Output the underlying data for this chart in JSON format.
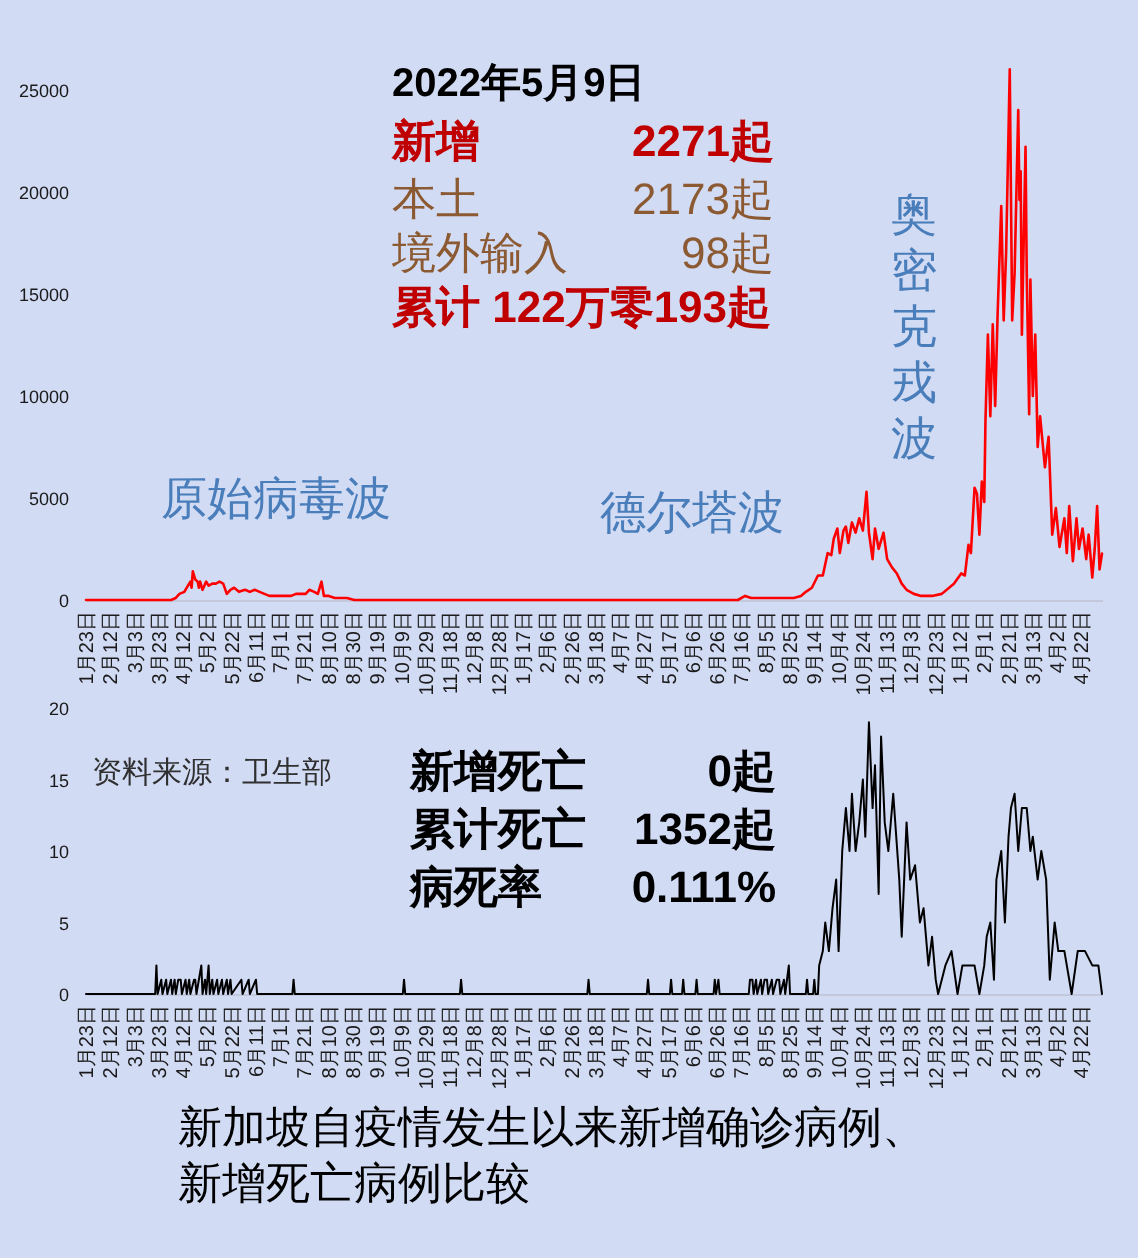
{
  "chart_data": [
    {
      "type": "line",
      "grid": false,
      "line_style": "solid",
      "xlim": [
        "2020-01-23",
        "2022-05-09"
      ],
      "xticks": [
        {
          "value": "2020-01-23",
          "label": "1月23日"
        },
        {
          "value": "2020-02-12",
          "label": "2月12日"
        },
        {
          "value": "2020-03-03",
          "label": "3月3日"
        },
        {
          "value": "2020-03-23",
          "label": "3月23日"
        },
        {
          "value": "2020-04-12",
          "label": "4月12日"
        },
        {
          "value": "2020-05-02",
          "label": "5月2日"
        },
        {
          "value": "2020-05-22",
          "label": "5月22日"
        },
        {
          "value": "2020-06-11",
          "label": "6月11日"
        },
        {
          "value": "2020-07-01",
          "label": "7月1日"
        },
        {
          "value": "2020-07-21",
          "label": "7月21日"
        },
        {
          "value": "2020-08-10",
          "label": "8月10日"
        },
        {
          "value": "2020-08-30",
          "label": "8月30日"
        },
        {
          "value": "2020-09-19",
          "label": "9月19日"
        },
        {
          "value": "2020-10-09",
          "label": "10月9日"
        },
        {
          "value": "2020-10-29",
          "label": "10月29日"
        },
        {
          "value": "2020-11-18",
          "label": "11月18日"
        },
        {
          "value": "2020-12-08",
          "label": "12月8日"
        },
        {
          "value": "2020-12-28",
          "label": "12月28日"
        },
        {
          "value": "2021-01-17",
          "label": "1月17日"
        },
        {
          "value": "2021-02-06",
          "label": "2月6日"
        },
        {
          "value": "2021-02-26",
          "label": "2月26日"
        },
        {
          "value": "2021-03-18",
          "label": "3月18日"
        },
        {
          "value": "2021-04-07",
          "label": "4月7日"
        },
        {
          "value": "2021-04-27",
          "label": "4月27日"
        },
        {
          "value": "2021-05-17",
          "label": "5月17日"
        },
        {
          "value": "2021-06-06",
          "label": "6月6日"
        },
        {
          "value": "2021-06-26",
          "label": "6月26日"
        },
        {
          "value": "2021-07-16",
          "label": "7月16日"
        },
        {
          "value": "2021-08-05",
          "label": "8月5日"
        },
        {
          "value": "2021-08-25",
          "label": "8月25日"
        },
        {
          "value": "2021-09-14",
          "label": "9月14日"
        },
        {
          "value": "2021-10-04",
          "label": "10月4日"
        },
        {
          "value": "2021-10-24",
          "label": "10月24日"
        },
        {
          "value": "2021-11-13",
          "label": "11月13日"
        },
        {
          "value": "2021-12-03",
          "label": "12月3日"
        },
        {
          "value": "2021-12-23",
          "label": "12月23日"
        },
        {
          "value": "2022-01-12",
          "label": "1月12日"
        },
        {
          "value": "2022-02-01",
          "label": "2月1日"
        },
        {
          "value": "2022-02-21",
          "label": "2月21日"
        },
        {
          "value": "2022-03-13",
          "label": "3月13日"
        },
        {
          "value": "2022-04-02",
          "label": "4月2日"
        },
        {
          "value": "2022-04-22",
          "label": "4月22日"
        }
      ],
      "ylim": [
        0,
        29000
      ],
      "yticks": [
        0,
        5000,
        10000,
        15000,
        20000,
        25000
      ],
      "x": [
        "2020-01-23",
        "2020-02-10",
        "2020-02-28",
        "2020-03-15",
        "2020-03-25",
        "2020-04-02",
        "2020-04-06",
        "2020-04-09",
        "2020-04-13",
        "2020-04-16",
        "2020-04-18",
        "2020-04-19",
        "2020-04-20",
        "2020-04-22",
        "2020-04-24",
        "2020-04-25",
        "2020-04-26",
        "2020-04-28",
        "2020-05-01",
        "2020-05-03",
        "2020-05-06",
        "2020-05-09",
        "2020-05-12",
        "2020-05-15",
        "2020-05-18",
        "2020-05-21",
        "2020-05-24",
        "2020-05-28",
        "2020-06-02",
        "2020-06-06",
        "2020-06-10",
        "2020-06-14",
        "2020-06-18",
        "2020-06-22",
        "2020-06-26",
        "2020-07-01",
        "2020-07-05",
        "2020-07-10",
        "2020-07-14",
        "2020-07-18",
        "2020-07-22",
        "2020-07-25",
        "2020-07-29",
        "2020-08-01",
        "2020-08-04",
        "2020-08-06",
        "2020-08-10",
        "2020-08-15",
        "2020-08-20",
        "2020-08-25",
        "2020-08-31",
        "2020-09-15",
        "2020-10-01",
        "2020-11-01",
        "2020-12-01",
        "2021-01-01",
        "2021-02-01",
        "2021-03-01",
        "2021-04-01",
        "2021-05-01",
        "2021-05-20",
        "2021-06-10",
        "2021-07-01",
        "2021-07-13",
        "2021-07-19",
        "2021-07-24",
        "2021-07-30",
        "2021-08-08",
        "2021-08-20",
        "2021-08-28",
        "2021-09-03",
        "2021-09-07",
        "2021-09-12",
        "2021-09-17",
        "2021-09-21",
        "2021-09-25",
        "2021-09-28",
        "2021-09-30",
        "2021-10-03",
        "2021-10-05",
        "2021-10-08",
        "2021-10-10",
        "2021-10-12",
        "2021-10-15",
        "2021-10-18",
        "2021-10-21",
        "2021-10-24",
        "2021-10-27",
        "2021-10-29",
        "2021-11-01",
        "2021-11-03",
        "2021-11-06",
        "2021-11-10",
        "2021-11-13",
        "2021-11-17",
        "2021-11-21",
        "2021-11-25",
        "2021-11-29",
        "2021-12-05",
        "2021-12-11",
        "2021-12-20",
        "2021-12-28",
        "2022-01-07",
        "2022-01-13",
        "2022-01-16",
        "2022-01-19",
        "2022-01-21",
        "2022-01-24",
        "2022-01-26",
        "2022-01-28",
        "2022-01-30",
        "2022-02-01",
        "2022-02-02",
        "2022-02-04",
        "2022-02-06",
        "2022-02-08",
        "2022-02-10",
        "2022-02-12",
        "2022-02-15",
        "2022-02-17",
        "2022-02-19",
        "2022-02-22",
        "2022-02-24",
        "2022-02-26",
        "2022-03-01",
        "2022-03-02",
        "2022-03-03",
        "2022-03-04",
        "2022-03-07",
        "2022-03-08",
        "2022-03-10",
        "2022-03-11",
        "2022-03-13",
        "2022-03-15",
        "2022-03-17",
        "2022-03-19",
        "2022-03-23",
        "2022-03-26",
        "2022-03-29",
        "2022-04-01",
        "2022-04-04",
        "2022-04-08",
        "2022-04-10",
        "2022-04-12",
        "2022-04-15",
        "2022-04-18",
        "2022-04-20",
        "2022-04-23",
        "2022-04-26",
        "2022-04-28",
        "2022-05-01",
        "2022-05-03",
        "2022-05-05",
        "2022-05-07",
        "2022-05-09"
      ],
      "series": [
        {
          "color": "#ff0000",
          "values": [
            0,
            0,
            0,
            0,
            0,
            0,
            100,
            300,
            400,
            700,
            900,
            600,
            1400,
            1000,
            900,
            600,
            900,
            500,
            900,
            700,
            800,
            800,
            900,
            800,
            300,
            500,
            600,
            400,
            500,
            400,
            500,
            400,
            300,
            200,
            200,
            200,
            200,
            200,
            300,
            300,
            300,
            500,
            400,
            300,
            900,
            200,
            200,
            100,
            100,
            100,
            0,
            0,
            0,
            0,
            0,
            0,
            0,
            0,
            0,
            0,
            0,
            0,
            0,
            0,
            200,
            100,
            100,
            100,
            100,
            100,
            200,
            400,
            600,
            1200,
            1200,
            2300,
            2200,
            3000,
            3500,
            2300,
            3400,
            3600,
            2800,
            3800,
            3300,
            4000,
            3400,
            5300,
            3300,
            2000,
            3500,
            2500,
            3300,
            2000,
            1600,
            1300,
            800,
            500,
            300,
            200,
            200,
            300,
            800,
            1300,
            1200,
            2700,
            2300,
            5500,
            5200,
            3200,
            5800,
            4800,
            8800,
            13000,
            9000,
            13500,
            9500,
            14000,
            19300,
            13700,
            17000,
            26000,
            13700,
            16000,
            24000,
            19600,
            21000,
            13000,
            22200,
            16000,
            9100,
            15700,
            10000,
            13000,
            7500,
            9000,
            6500,
            8000,
            3200,
            4500,
            2600,
            4000,
            2300,
            4600,
            1900,
            4000,
            2500,
            3500,
            2000,
            3200,
            1100,
            2500,
            4600,
            1500,
            2271
          ]
        }
      ],
      "annotations": [
        "2022年5月9日",
        "新增",
        "2271起",
        "本土",
        "2173起",
        "境外输入",
        "98起",
        "累计 122万零193起",
        "原始病毒波",
        "德尔塔波",
        "奥密克戎波"
      ]
    },
    {
      "type": "line",
      "grid": false,
      "line_style": "solid",
      "title": "新加坡自疫情发生以来新增确诊病例、新增死亡病例比较",
      "xlim": [
        "2020-01-23",
        "2022-05-09"
      ],
      "xticks": [
        {
          "value": "2020-01-23",
          "label": "1月23日"
        },
        {
          "value": "2020-02-12",
          "label": "2月12日"
        },
        {
          "value": "2020-03-03",
          "label": "3月3日"
        },
        {
          "value": "2020-03-23",
          "label": "3月23日"
        },
        {
          "value": "2020-04-12",
          "label": "4月12日"
        },
        {
          "value": "2020-05-02",
          "label": "5月2日"
        },
        {
          "value": "2020-05-22",
          "label": "5月22日"
        },
        {
          "value": "2020-06-11",
          "label": "6月11日"
        },
        {
          "value": "2020-07-01",
          "label": "7月1日"
        },
        {
          "value": "2020-07-21",
          "label": "7月21日"
        },
        {
          "value": "2020-08-10",
          "label": "8月10日"
        },
        {
          "value": "2020-08-30",
          "label": "8月30日"
        },
        {
          "value": "2020-09-19",
          "label": "9月19日"
        },
        {
          "value": "2020-10-09",
          "label": "10月9日"
        },
        {
          "value": "2020-10-29",
          "label": "10月29日"
        },
        {
          "value": "2020-11-18",
          "label": "11月18日"
        },
        {
          "value": "2020-12-08",
          "label": "12月8日"
        },
        {
          "value": "2020-12-28",
          "label": "12月28日"
        },
        {
          "value": "2021-01-17",
          "label": "1月17日"
        },
        {
          "value": "2021-02-06",
          "label": "2月6日"
        },
        {
          "value": "2021-02-26",
          "label": "2月26日"
        },
        {
          "value": "2021-03-18",
          "label": "3月18日"
        },
        {
          "value": "2021-04-07",
          "label": "4月7日"
        },
        {
          "value": "2021-04-27",
          "label": "4月27日"
        },
        {
          "value": "2021-05-17",
          "label": "5月17日"
        },
        {
          "value": "2021-06-06",
          "label": "6月6日"
        },
        {
          "value": "2021-06-26",
          "label": "6月26日"
        },
        {
          "value": "2021-07-16",
          "label": "7月16日"
        },
        {
          "value": "2021-08-05",
          "label": "8月5日"
        },
        {
          "value": "2021-08-25",
          "label": "8月25日"
        },
        {
          "value": "2021-09-14",
          "label": "9月14日"
        },
        {
          "value": "2021-10-04",
          "label": "10月4日"
        },
        {
          "value": "2021-10-24",
          "label": "10月24日"
        },
        {
          "value": "2021-11-13",
          "label": "11月13日"
        },
        {
          "value": "2021-12-03",
          "label": "12月3日"
        },
        {
          "value": "2021-12-23",
          "label": "12月23日"
        },
        {
          "value": "2022-01-12",
          "label": "1月12日"
        },
        {
          "value": "2022-02-01",
          "label": "2月1日"
        },
        {
          "value": "2022-02-21",
          "label": "2月21日"
        },
        {
          "value": "2022-03-13",
          "label": "3月13日"
        },
        {
          "value": "2022-04-02",
          "label": "4月2日"
        },
        {
          "value": "2022-04-22",
          "label": "4月22日"
        }
      ],
      "ylim": [
        0,
        20
      ],
      "yticks": [
        0,
        5,
        10,
        15,
        20
      ],
      "x": [
        "2020-01-23",
        "2020-03-20",
        "2020-03-21",
        "2020-03-22",
        "2020-03-25",
        "2020-03-26",
        "2020-03-29",
        "2020-03-30",
        "2020-04-02",
        "2020-04-03",
        "2020-04-05",
        "2020-04-06",
        "2020-04-08",
        "2020-04-10",
        "2020-04-11",
        "2020-04-14",
        "2020-04-15",
        "2020-04-17",
        "2020-04-18",
        "2020-04-21",
        "2020-04-22",
        "2020-04-23",
        "2020-04-27",
        "2020-04-28",
        "2020-04-30",
        "2020-05-01",
        "2020-05-03",
        "2020-05-04",
        "2020-05-06",
        "2020-05-07",
        "2020-05-10",
        "2020-05-11",
        "2020-05-14",
        "2020-05-15",
        "2020-05-18",
        "2020-05-19",
        "2020-05-21",
        "2020-05-22",
        "2020-05-30",
        "2020-05-31",
        "2020-06-05",
        "2020-06-06",
        "2020-06-11",
        "2020-06-12",
        "2020-07-11",
        "2020-07-12",
        "2020-07-13",
        "2020-10-10",
        "2020-10-11",
        "2020-10-12",
        "2020-11-26",
        "2020-11-27",
        "2020-11-28",
        "2021-03-11",
        "2021-03-12",
        "2021-03-13",
        "2021-04-29",
        "2021-04-30",
        "2021-05-01",
        "2021-05-18",
        "2021-05-19",
        "2021-05-20",
        "2021-05-28",
        "2021-05-29",
        "2021-05-30",
        "2021-06-08",
        "2021-06-09",
        "2021-06-10",
        "2021-06-23",
        "2021-06-24",
        "2021-06-25",
        "2021-06-27",
        "2021-06-28",
        "2021-07-22",
        "2021-07-23",
        "2021-07-25",
        "2021-07-26",
        "2021-07-28",
        "2021-07-29",
        "2021-08-01",
        "2021-08-02",
        "2021-08-04",
        "2021-08-06",
        "2021-08-07",
        "2021-08-10",
        "2021-08-11",
        "2021-08-14",
        "2021-08-16",
        "2021-08-17",
        "2021-08-20",
        "2021-08-21",
        "2021-08-24",
        "2021-08-25",
        "2021-09-07",
        "2021-09-08",
        "2021-09-09",
        "2021-09-13",
        "2021-09-14",
        "2021-09-15",
        "2021-09-17",
        "2021-09-18",
        "2021-09-21",
        "2021-09-23",
        "2021-09-26",
        "2021-09-29",
        "2021-10-02",
        "2021-10-04",
        "2021-10-07",
        "2021-10-10",
        "2021-10-13",
        "2021-10-15",
        "2021-10-18",
        "2021-10-21",
        "2021-10-24",
        "2021-10-26",
        "2021-10-29",
        "2021-11-01",
        "2021-11-03",
        "2021-11-06",
        "2021-11-08",
        "2021-11-11",
        "2021-11-14",
        "2021-11-18",
        "2021-11-23",
        "2021-11-25",
        "2021-11-29",
        "2021-12-02",
        "2021-12-06",
        "2021-12-10",
        "2021-12-13",
        "2021-12-17",
        "2021-12-20",
        "2021-12-23",
        "2021-12-25",
        "2021-12-31",
        "2022-01-05",
        "2022-01-10",
        "2022-01-14",
        "2022-01-19",
        "2022-01-24",
        "2022-01-28",
        "2022-02-01",
        "2022-02-03",
        "2022-02-06",
        "2022-02-09",
        "2022-02-11",
        "2022-02-15",
        "2022-02-18",
        "2022-02-21",
        "2022-02-23",
        "2022-02-26",
        "2022-03-01",
        "2022-03-04",
        "2022-03-08",
        "2022-03-11",
        "2022-03-13",
        "2022-03-17",
        "2022-03-20",
        "2022-03-24",
        "2022-03-27",
        "2022-03-31",
        "2022-04-03",
        "2022-04-08",
        "2022-04-14",
        "2022-04-19",
        "2022-04-25",
        "2022-05-01",
        "2022-05-06",
        "2022-05-09"
      ],
      "series": [
        {
          "color": "#000000",
          "values": [
            0,
            0,
            2,
            0,
            1,
            0,
            1,
            0,
            1,
            0,
            1,
            0,
            1,
            1,
            0,
            1,
            0,
            1,
            0,
            1,
            1,
            0,
            2,
            0,
            1,
            0,
            2,
            0,
            1,
            0,
            1,
            0,
            1,
            0,
            1,
            0,
            1,
            0,
            1,
            0,
            1,
            0,
            1,
            0,
            0,
            1,
            0,
            0,
            1,
            0,
            0,
            1,
            0,
            0,
            1,
            0,
            0,
            1,
            0,
            0,
            1,
            0,
            0,
            1,
            0,
            0,
            1,
            0,
            0,
            1,
            0,
            1,
            0,
            0,
            1,
            1,
            0,
            1,
            0,
            1,
            0,
            1,
            1,
            0,
            1,
            0,
            1,
            1,
            0,
            1,
            0,
            2,
            0,
            0,
            1,
            0,
            0,
            1,
            0,
            0,
            2,
            3,
            5,
            3,
            6,
            8,
            3,
            10,
            13,
            10,
            14,
            10,
            12,
            15,
            11,
            19,
            13,
            16,
            7,
            18,
            12,
            10,
            14,
            8,
            4,
            12,
            8,
            9,
            5,
            6,
            2,
            4,
            1,
            0,
            2,
            3,
            0,
            2,
            2,
            2,
            0,
            2,
            4,
            5,
            1,
            8,
            10,
            5,
            11,
            13,
            14,
            10,
            13,
            13,
            10,
            11,
            8,
            10,
            8,
            1,
            5,
            3,
            3,
            0,
            3,
            3,
            2,
            2,
            0
          ]
        }
      ],
      "annotations": [
        "资料来源：卫生部",
        "新增死亡",
        "0起",
        "累计死亡",
        "1352起",
        "病死率",
        "0.111%"
      ]
    }
  ]
}
